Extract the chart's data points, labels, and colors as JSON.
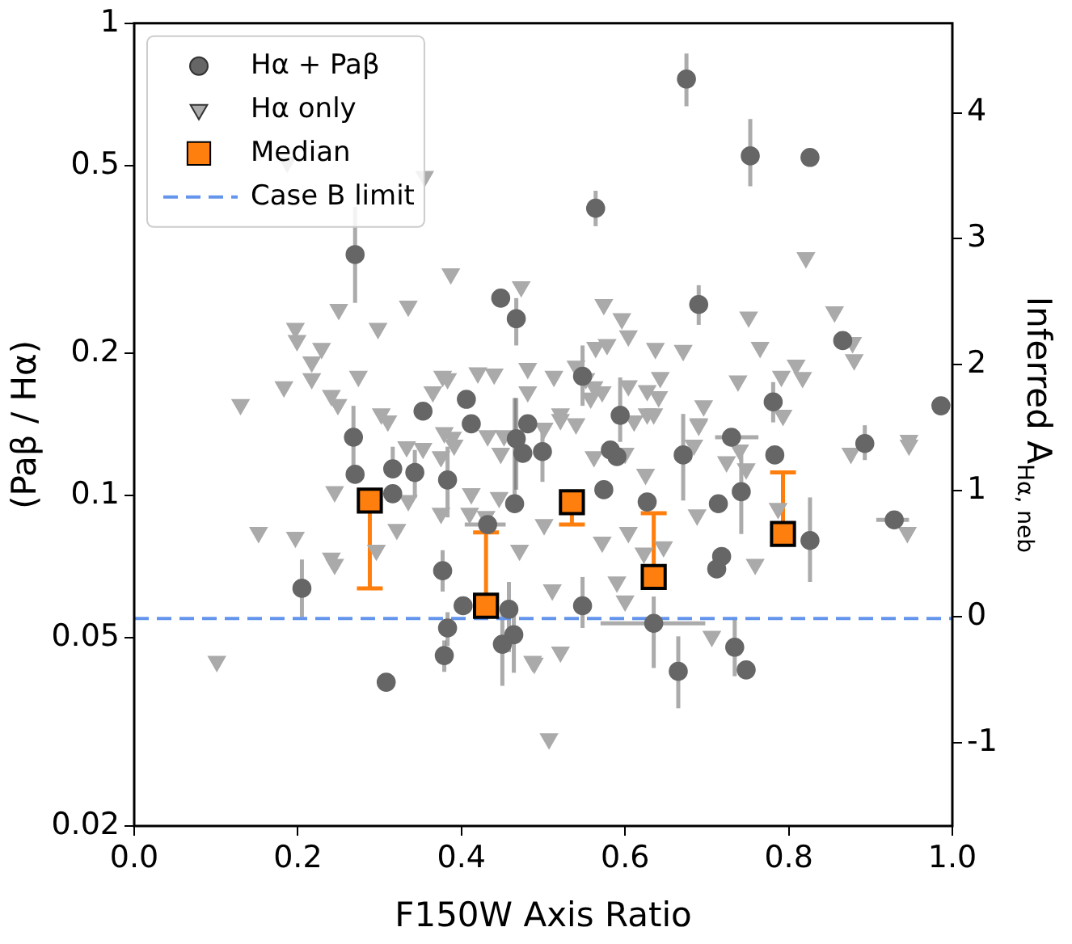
{
  "chart_data": {
    "type": "scatter",
    "xlabel": "F150W Axis Ratio",
    "ylabel": "(Paβ / Hα)",
    "y2label": "Inferred A$_{Hα, neb}$",
    "xlim": [
      0,
      1
    ],
    "xticks": [
      {
        "value": 0,
        "label": "0.0"
      },
      {
        "value": 0.2,
        "label": "0.2"
      },
      {
        "value": 0.4,
        "label": "0.4"
      },
      {
        "value": 0.6,
        "label": "0.6"
      },
      {
        "value": 0.8,
        "label": "0.8"
      },
      {
        "value": 1,
        "label": "1.0"
      }
    ],
    "ylim": [
      0.02,
      1
    ],
    "yticks": [
      0.02,
      0.05,
      0.1,
      0.2,
      0.5,
      1
    ],
    "log": "y",
    "y2lim": [
      -1.66,
      4.71
    ],
    "y2ticks": [
      -1,
      0,
      1,
      2,
      3,
      4
    ],
    "grid": false,
    "legend": "top left",
    "ref_lines": [
      {
        "axis": "y",
        "value": 0.055,
        "label": "Case B limit",
        "color": "#6495ed",
        "line_style": "dashed"
      }
    ],
    "series": [
      {
        "name": "Hα only",
        "marker": "triangle",
        "color": "#aaaaaa",
        "x": [
          0.187,
          0.355,
          0.387,
          0.473,
          0.25,
          0.335,
          0.298,
          0.197,
          0.199,
          0.229,
          0.217,
          0.274,
          0.217,
          0.183,
          0.13,
          0.241,
          0.249,
          0.377,
          0.383,
          0.42,
          0.44,
          0.481,
          0.513,
          0.365,
          0.481,
          0.302,
          0.31,
          0.389,
          0.501,
          0.821,
          0.574,
          0.596,
          0.604,
          0.751,
          0.856,
          0.878,
          0.88,
          0.564,
          0.578,
          0.637,
          0.671,
          0.765,
          0.809,
          0.817,
          0.791,
          0.738,
          0.643,
          0.627,
          0.641,
          0.54,
          0.552,
          0.562,
          0.572,
          0.558,
          0.604,
          0.696,
          0.69,
          0.521,
          0.54,
          0.611,
          0.627,
          0.793,
          0.947,
          0.245,
          0.152,
          0.197,
          0.241,
          0.245,
          0.296,
          0.321,
          0.335,
          0.375,
          0.412,
          0.41,
          0.446,
          0.43,
          0.471,
          0.501,
          0.511,
          0.521,
          0.489,
          0.101,
          0.507,
          0.333,
          0.353,
          0.379,
          0.391,
          0.432,
          0.452,
          0.448,
          0.375,
          0.572,
          0.604,
          0.623,
          0.647,
          0.688,
          0.759,
          0.59,
          0.6,
          0.706,
          0.487,
          0.787,
          0.876,
          0.947,
          0.945,
          0.625,
          0.635,
          0.69,
          0.724,
          0.748,
          0.74,
          0.684,
          0.562,
          0.6,
          0.521
        ],
        "values": [
          0.508,
          0.474,
          0.295,
          0.277,
          0.248,
          0.252,
          0.226,
          0.226,
          0.213,
          0.205,
          0.192,
          0.179,
          0.177,
          0.17,
          0.156,
          0.163,
          0.156,
          0.179,
          0.177,
          0.182,
          0.181,
          0.186,
          0.179,
          0.166,
          0.166,
          0.149,
          0.144,
          0.133,
          0.139,
          0.319,
          0.254,
          0.237,
          0.218,
          0.239,
          0.245,
          0.211,
          0.194,
          0.206,
          0.209,
          0.205,
          0.203,
          0.206,
          0.189,
          0.178,
          0.179,
          0.175,
          0.178,
          0.167,
          0.162,
          0.188,
          0.177,
          0.17,
          0.166,
          0.161,
          0.171,
          0.155,
          0.142,
          0.145,
          0.142,
          0.144,
          0.149,
          0.148,
          0.131,
          0.102,
          0.0836,
          0.0817,
          0.0738,
          0.0716,
          0.0767,
          0.0849,
          0.0977,
          0.0918,
          0.101,
          0.0918,
          0.0992,
          0.0904,
          0.0767,
          0.0869,
          0.0632,
          0.0467,
          0.0442,
          0.0446,
          0.0306,
          0.127,
          0.126,
          0.136,
          0.128,
          0.134,
          0.134,
          0.123,
          0.121,
          0.0798,
          0.0836,
          0.0756,
          0.078,
          0.0911,
          0.0716,
          0.0657,
          0.0599,
          0.0504,
          0.0446,
          0.094,
          0.123,
          0.128,
          0.0836,
          0.111,
          0.149,
          0.141,
          0.118,
          0.114,
          0.125,
          0.128,
          0.121,
          0.123,
          0.149
        ]
      },
      {
        "name": "Hα + Paβ",
        "marker": "circle",
        "color": "#666666",
        "x": [
          0.27,
          0.448,
          0.467,
          0.353,
          0.406,
          0.412,
          0.481,
          0.268,
          0.465,
          0.675,
          0.753,
          0.826,
          0.564,
          0.69,
          0.866,
          0.548,
          0.781,
          0.986,
          0.594,
          0.73,
          0.893,
          0.27,
          0.316,
          0.316,
          0.343,
          0.383,
          0.465,
          0.467,
          0.475,
          0.499,
          0.432,
          0.205,
          0.377,
          0.383,
          0.379,
          0.402,
          0.458,
          0.464,
          0.45,
          0.308,
          0.783,
          0.671,
          0.582,
          0.59,
          0.574,
          0.627,
          0.714,
          0.742,
          0.826,
          0.929,
          0.718,
          0.712,
          0.548,
          0.635,
          0.734,
          0.748,
          0.665
        ],
        "values": [
          0.324,
          0.262,
          0.237,
          0.151,
          0.16,
          0.142,
          0.142,
          0.133,
          null,
          0.762,
          0.524,
          0.52,
          0.406,
          0.254,
          0.213,
          0.179,
          0.158,
          0.155,
          0.148,
          0.133,
          0.129,
          0.111,
          0.114,
          0.101,
          0.112,
          0.108,
          0.0962,
          0.132,
          0.123,
          0.124,
          0.0869,
          0.0637,
          0.0694,
          0.0525,
          0.0459,
          0.0585,
          0.0575,
          0.0508,
          0.0485,
          0.0403,
          0.122,
          0.122,
          0.125,
          0.121,
          0.103,
          0.097,
          0.0962,
          0.102,
          0.0804,
          0.0889,
          0.0744,
          0.07,
          0.0585,
          0.0537,
          0.0478,
          0.0428,
          0.0425
        ],
        "errors": [
          [
            0.256,
            0.409
          ],
          null,
          [
            0.208,
            0.262
          ],
          null,
          null,
          null,
          null,
          [
            0.113,
            0.155
          ],
          null,
          [
            0.667,
            0.863
          ],
          [
            0.452,
            0.627
          ],
          null,
          [
            0.372,
            0.442
          ],
          [
            0.23,
            0.279
          ],
          null,
          [
            0.155,
            0.208
          ],
          [
            0.143,
            0.174
          ],
          null,
          [
            0.13,
            0.178
          ],
          null,
          [
            0.119,
            0.141
          ],
          null,
          [
            0.114,
            0.127
          ],
          null,
          [
            0.099,
            0.125
          ],
          [
            0.09,
            0.127
          ],
          [
            0.093,
            0.161
          ],
          [
            0.103,
            0.161
          ],
          null,
          [
            0.107,
            0.141
          ],
          null,
          [
            0.0553,
            0.0733
          ],
          [
            0.0627,
            0.0767
          ],
          [
            0.0481,
            0.0567
          ],
          [
            0.0424,
            0.0494
          ],
          null,
          [
            0.0467,
            0.0657
          ],
          [
            0.0422,
            0.0585
          ],
          [
            0.0396,
            0.0562
          ],
          null,
          null,
          [
            0.0977,
            0.149
          ],
          null,
          null,
          null,
          null,
          null,
          [
            0.083,
            0.123
          ],
          [
            0.0657,
            0.0992
          ],
          null,
          null,
          null,
          [
            0.0525,
            0.0673
          ],
          [
            0.0432,
            0.0612
          ],
          [
            0.0415,
            0.0553
          ],
          null,
          [
            0.0355,
            0.0504
          ]
        ],
        "xerrors": [
          null,
          null,
          null,
          null,
          null,
          null,
          null,
          null,
          null,
          null,
          null,
          null,
          null,
          null,
          null,
          null,
          null,
          null,
          null,
          [
            0.71,
            0.763
          ],
          null,
          null,
          null,
          null,
          null,
          null,
          null,
          null,
          null,
          null,
          [
            0.404,
            0.454
          ],
          null,
          null,
          null,
          null,
          null,
          null,
          null,
          null,
          null,
          null,
          null,
          null,
          null,
          null,
          null,
          null,
          null,
          null,
          [
            0.907,
            0.947
          ],
          null,
          null,
          null,
          [
            0.57,
            0.698
          ],
          null,
          null,
          null
        ]
      },
      {
        "name": "Median",
        "marker": "square",
        "color": "#ff7f0e",
        "x": [
          0.288,
          0.43,
          0.535,
          0.635,
          0.793
        ],
        "values": [
          0.0977,
          0.0585,
          0.0969,
          0.0673,
          0.083
        ],
        "errors": [
          [
            0.0637,
            0.0977
          ],
          [
            0.0585,
            0.0836
          ],
          [
            0.0869,
            0.0969
          ],
          [
            0.0673,
            0.0918
          ],
          [
            0.083,
            0.112
          ]
        ]
      }
    ]
  }
}
